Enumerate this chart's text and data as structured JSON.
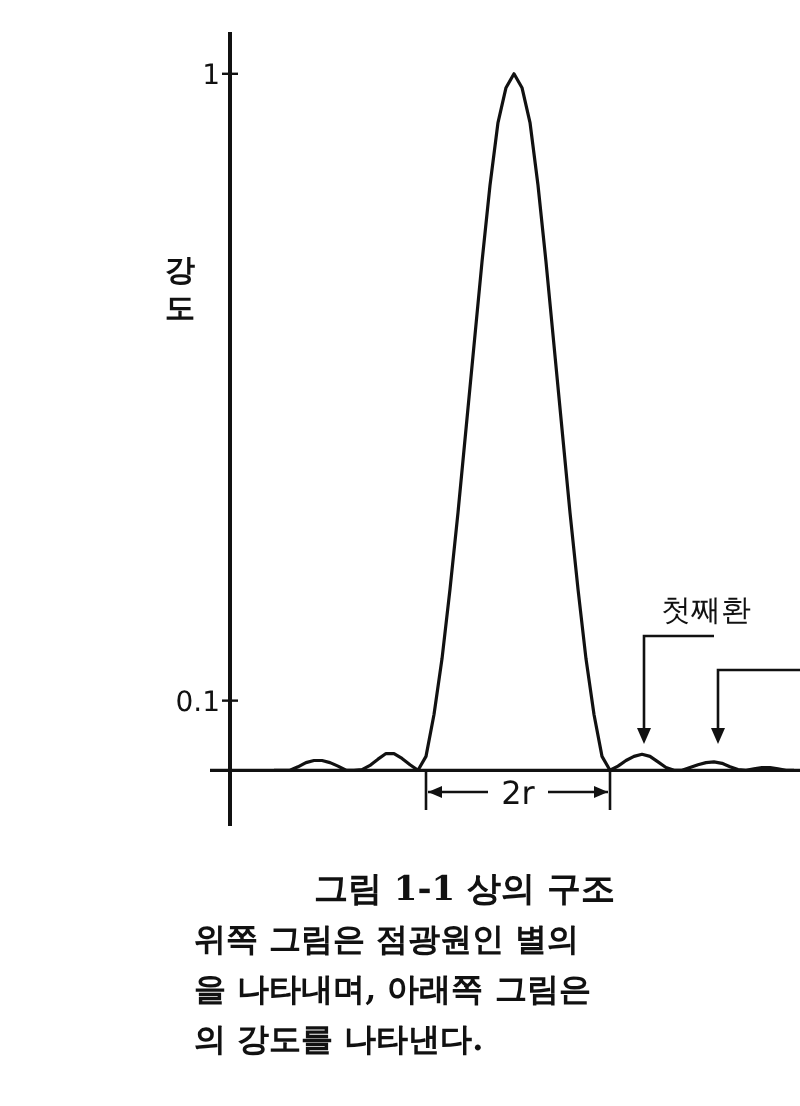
{
  "chart_data": {
    "type": "line",
    "title": "그림 1-1  상의 구조",
    "ylabel": "강도",
    "categories": [
      null,
      null,
      null,
      null,
      null,
      null,
      null,
      null,
      null,
      null,
      null,
      null,
      null,
      null,
      null,
      null,
      null,
      null,
      null,
      null,
      null,
      null,
      null,
      null,
      null,
      null,
      null,
      null,
      null,
      null,
      null,
      null,
      null,
      null,
      null,
      null,
      null,
      null,
      null,
      null,
      null,
      null,
      null,
      null,
      null,
      null,
      null,
      null,
      null,
      null,
      null,
      null,
      null,
      null,
      null,
      null,
      null,
      null,
      null,
      null,
      null,
      null,
      null,
      null,
      null,
      null
    ],
    "values": [
      0,
      0,
      0,
      0.005,
      0.011,
      0.014,
      0.014,
      0.011,
      0.006,
      0,
      0,
      0.001,
      0.007,
      0.016,
      0.024,
      0.024,
      0.017,
      0.008,
      0,
      0.02,
      0.08,
      0.16,
      0.26,
      0.37,
      0.49,
      0.61,
      0.73,
      0.84,
      0.93,
      0.98,
      1.0,
      0.98,
      0.93,
      0.84,
      0.73,
      0.61,
      0.49,
      0.37,
      0.26,
      0.16,
      0.08,
      0.02,
      0,
      0.006,
      0.014,
      0.02,
      0.023,
      0.02,
      0.012,
      0.004,
      0,
      0,
      0.004,
      0.008,
      0.011,
      0.012,
      0.01,
      0.005,
      0.001,
      0,
      0.002,
      0.004,
      0.004,
      0.002,
      0,
      0
    ],
    "color": "#111111",
    "ylim": [
      -0.08,
      1.06
    ],
    "yticks": [
      0.1,
      1
    ],
    "grid": false,
    "marker": "none",
    "line_style": "solid",
    "annotations": [
      "첫째환",
      "2r",
      "위쪽 그림은 점광원인 별의",
      "을 나타내며, 아래쪽 그림은",
      "의 강도를 나타낸다."
    ]
  }
}
